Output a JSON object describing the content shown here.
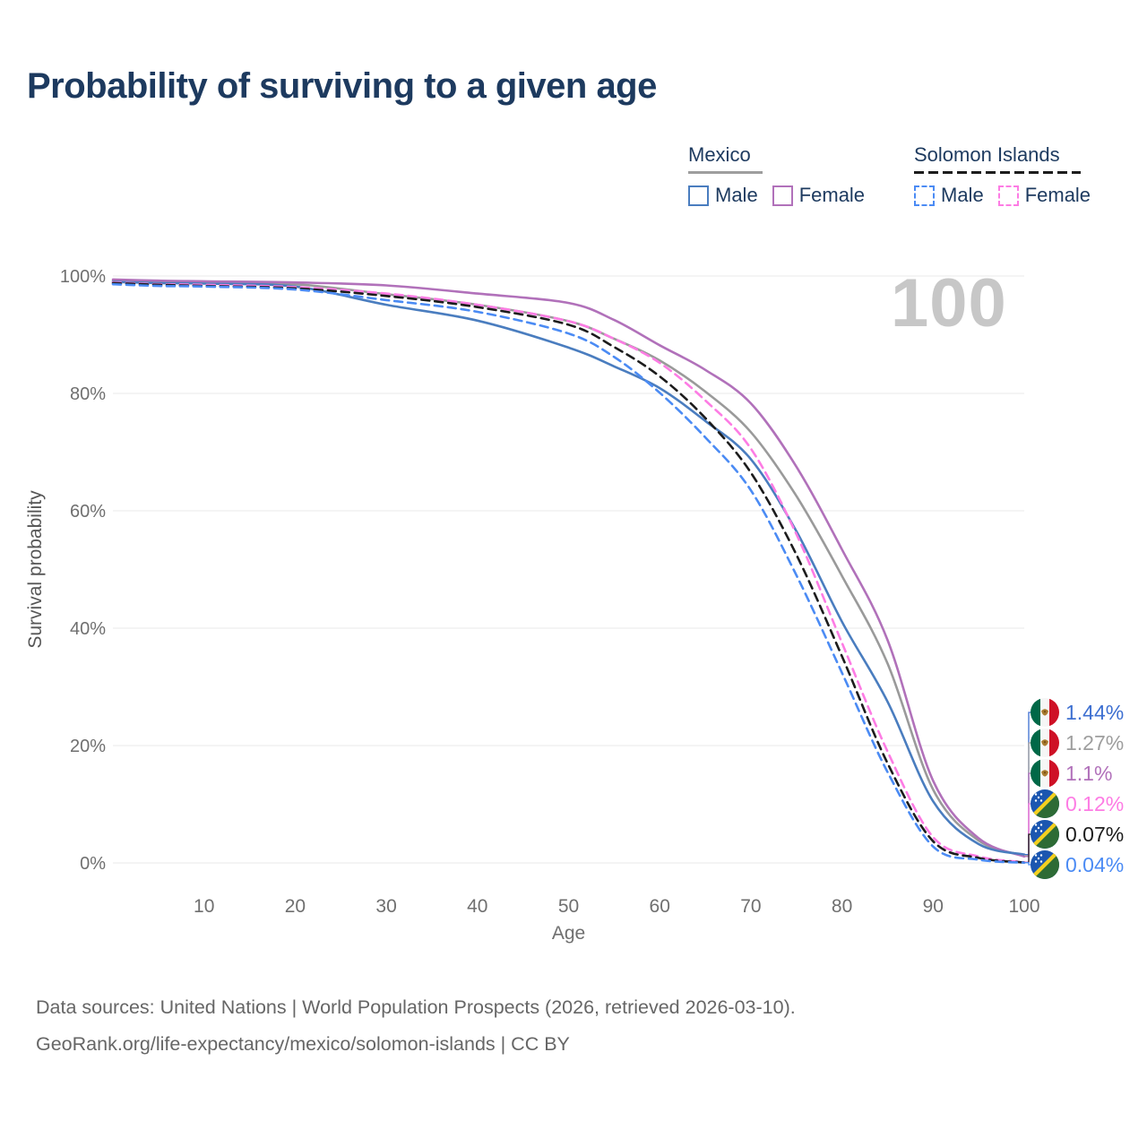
{
  "title": "Probability of surviving to a given age",
  "watermark_age": "100",
  "legend": {
    "groups": [
      {
        "name": "Mexico",
        "line_style": "solid",
        "underline_color": "#9e9e9e",
        "items": [
          {
            "label": "Male",
            "color": "#4a7dbf"
          },
          {
            "label": "Female",
            "color": "#b171ba"
          }
        ]
      },
      {
        "name": "Solomon Islands",
        "line_style": "dashed",
        "underline_color": "#1c1c1c",
        "items": [
          {
            "label": "Male",
            "color": "#4b8bf4"
          },
          {
            "label": "Female",
            "color": "#fd7ce4"
          }
        ]
      }
    ]
  },
  "axes": {
    "x_title": "Age",
    "y_title": "Survival probability",
    "x_ticks": [
      "10",
      "20",
      "30",
      "40",
      "50",
      "60",
      "70",
      "80",
      "90",
      "100"
    ],
    "y_ticks": [
      "0%",
      "20%",
      "40%",
      "60%",
      "80%",
      "100%"
    ]
  },
  "chart_data": {
    "type": "line",
    "title": "Probability of surviving to a given age",
    "xlabel": "Age",
    "ylabel": "Survival probability",
    "xlim": [
      0,
      100
    ],
    "ylim": [
      0,
      100
    ],
    "grid": "horizontal",
    "legend_position": "top-right",
    "x": [
      0,
      5,
      10,
      20,
      30,
      40,
      50,
      55,
      60,
      65,
      70,
      75,
      80,
      85,
      90,
      95,
      100
    ],
    "series": [
      {
        "id": "mexico-both",
        "name": "Mexico Both sexes",
        "country": "Mexico",
        "sex": "both",
        "color": "#9a9a9a",
        "dash": "solid",
        "end_label": "1.27%",
        "values": [
          99.2,
          99.0,
          98.9,
          98.6,
          96.9,
          95.1,
          92.3,
          89.3,
          85.6,
          80.3,
          73.4,
          62.5,
          48.9,
          34.0,
          12.5,
          3.8,
          1.27
        ]
      },
      {
        "id": "mexico-female",
        "name": "Mexico Female",
        "country": "Mexico",
        "sex": "female",
        "color": "#b171ba",
        "dash": "solid",
        "end_label": "1.1%",
        "values": [
          99.4,
          99.2,
          99.1,
          98.9,
          98.4,
          97.0,
          95.4,
          92.5,
          88.2,
          84.0,
          78.3,
          67.5,
          53.4,
          38.0,
          14.0,
          4.2,
          1.1
        ]
      },
      {
        "id": "mexico-male",
        "name": "Mexico Male",
        "country": "Mexico",
        "sex": "male",
        "color": "#4a7dbf",
        "dash": "solid",
        "end_label": "1.44%",
        "values": [
          99.0,
          98.8,
          98.7,
          98.2,
          95.1,
          92.4,
          87.8,
          84.6,
          80.9,
          75.3,
          68.8,
          56.5,
          41.1,
          27.5,
          10.5,
          3.2,
          1.44
        ]
      },
      {
        "id": "solomon-islands-female",
        "name": "Solomon Islands Female",
        "country": "Solomon Islands",
        "sex": "female",
        "color": "#fd7ce4",
        "dash": "dashed",
        "end_label": "0.12%",
        "values": [
          98.9,
          98.6,
          98.5,
          98.1,
          97.0,
          95.1,
          92.3,
          89.3,
          85.2,
          78.8,
          70.6,
          56.0,
          37.5,
          19.0,
          4.4,
          1.1,
          0.12
        ]
      },
      {
        "id": "solomon-islands-both",
        "name": "Solomon Islands Both sexes",
        "country": "Solomon Islands",
        "sex": "both",
        "color": "#1c1c1c",
        "dash": "dashed",
        "end_label": "0.07%",
        "values": [
          98.8,
          98.5,
          98.3,
          97.9,
          96.6,
          94.7,
          91.7,
          87.9,
          82.9,
          75.8,
          66.5,
          52.5,
          35.2,
          17.0,
          3.7,
          0.85,
          0.07
        ]
      },
      {
        "id": "solomon-islands-male",
        "name": "Solomon Islands Male",
        "country": "Solomon Islands",
        "sex": "male",
        "color": "#4b8bf4",
        "dash": "dashed",
        "end_label": "0.04%",
        "values": [
          98.6,
          98.3,
          98.2,
          97.7,
          95.9,
          93.9,
          90.2,
          86.2,
          80.1,
          72.5,
          63.5,
          49.0,
          32.4,
          15.5,
          2.8,
          0.55,
          0.04
        ]
      }
    ]
  },
  "end_labels": [
    {
      "series": "mexico-male",
      "flag": "mx",
      "value": "1.44%",
      "pct": 1.44,
      "color": "#3d6fd1"
    },
    {
      "series": "mexico-both",
      "flag": "mx",
      "value": "1.27%",
      "pct": 1.27,
      "color": "#9e9e9e"
    },
    {
      "series": "mexico-female",
      "flag": "mx",
      "value": "1.1%",
      "pct": 1.1,
      "color": "#b171ba"
    },
    {
      "series": "solomon-islands-female",
      "flag": "sb",
      "value": "0.12%",
      "pct": 0.12,
      "color": "#fd7ce4"
    },
    {
      "series": "solomon-islands-both",
      "flag": "sb",
      "value": "0.07%",
      "pct": 0.07,
      "color": "#1c1c1c"
    },
    {
      "series": "solomon-islands-male",
      "flag": "sb",
      "value": "0.04%",
      "pct": 0.04,
      "color": "#4b8bf4"
    }
  ],
  "footer": {
    "line1": "Data sources: United Nations | World Population Prospects (2026, retrieved 2026-03-10).",
    "line2": "GeoRank.org/life-expectancy/mexico/solomon-islands | CC BY"
  }
}
